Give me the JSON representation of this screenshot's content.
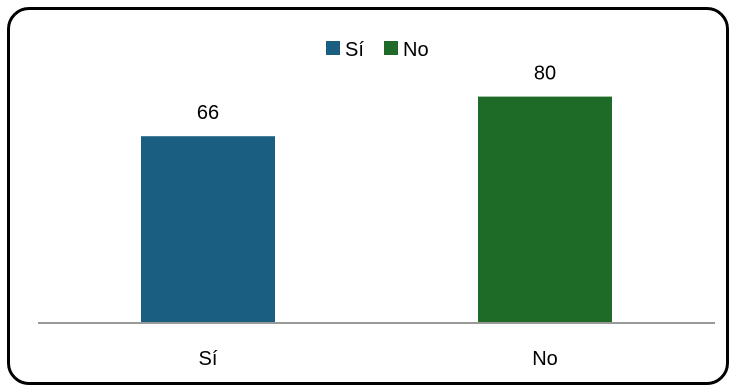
{
  "chart_data": {
    "type": "bar",
    "categories": [
      "Sí",
      "No"
    ],
    "values": [
      66,
      80
    ],
    "colors": [
      "#1a5e82",
      "#1e6b27"
    ],
    "legend": {
      "placement": "top",
      "entries": [
        {
          "label": "Sí",
          "color": "#1a5e82"
        },
        {
          "label": "No",
          "color": "#1e6b27"
        }
      ]
    },
    "data_labels": [
      "66",
      "80"
    ],
    "ylim": [
      0,
      100
    ],
    "grid": false,
    "baseline_color": "#999999"
  }
}
